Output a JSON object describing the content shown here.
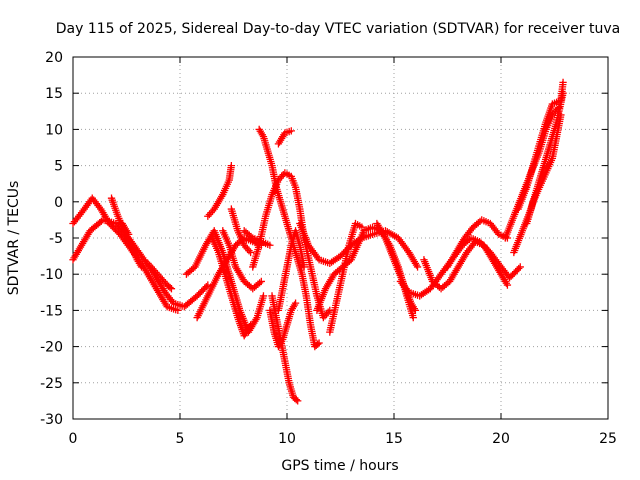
{
  "chart_data": {
    "type": "scatter",
    "title": "Day 115 of 2025, Sidereal Day-to-day VTEC variation (SDTVAR) for receiver tuva",
    "xlabel": "GPS time / hours",
    "ylabel": "SDTVAR / TECUs",
    "xlim": [
      0,
      25
    ],
    "ylim": [
      -30,
      20
    ],
    "xticks": [
      0,
      5,
      10,
      15,
      20,
      25
    ],
    "yticks": [
      -30,
      -25,
      -20,
      -15,
      -10,
      -5,
      0,
      5,
      10,
      15,
      20
    ],
    "grid": true,
    "marker": "plus",
    "color": "#ff0000",
    "series": [
      {
        "name": "arc-1",
        "points": [
          [
            0,
            -8
          ],
          [
            0.4,
            -6
          ],
          [
            0.8,
            -4
          ],
          [
            1.4,
            -2.5
          ],
          [
            2.0,
            -3
          ],
          [
            2.6,
            -5
          ],
          [
            3.2,
            -7.5
          ],
          [
            3.8,
            -10
          ],
          [
            4.3,
            -12.5
          ],
          [
            4.7,
            -14
          ],
          [
            5.2,
            -14.5
          ],
          [
            5.8,
            -13
          ],
          [
            6.3,
            -11.5
          ]
        ]
      },
      {
        "name": "arc-2",
        "points": [
          [
            0,
            -3
          ],
          [
            0.4,
            -1.5
          ],
          [
            0.9,
            0.5
          ],
          [
            1.3,
            -1
          ],
          [
            1.7,
            -3
          ],
          [
            2.2,
            -4.5
          ],
          [
            2.7,
            -6.5
          ],
          [
            3.3,
            -9
          ],
          [
            3.9,
            -12
          ],
          [
            4.4,
            -14.5
          ],
          [
            4.9,
            -15
          ]
        ]
      },
      {
        "name": "arc-3",
        "points": [
          [
            1.8,
            0.5
          ],
          [
            2.1,
            -2
          ],
          [
            2.4,
            -4
          ],
          [
            2.7,
            -6
          ],
          [
            3.0,
            -8
          ],
          [
            3.2,
            -9
          ]
        ]
      },
      {
        "name": "arc-4",
        "points": [
          [
            2.3,
            -3
          ],
          [
            2.6,
            -4.5
          ]
        ]
      },
      {
        "name": "arc-5",
        "points": [
          [
            3.5,
            -8.5
          ],
          [
            3.8,
            -9.5
          ],
          [
            4.1,
            -10.5
          ],
          [
            4.4,
            -11.5
          ],
          [
            4.6,
            -12
          ]
        ]
      },
      {
        "name": "arc-6",
        "points": [
          [
            5.3,
            -10
          ],
          [
            5.7,
            -9
          ],
          [
            6.2,
            -6
          ],
          [
            6.6,
            -4
          ],
          [
            7.0,
            -7
          ],
          [
            7.4,
            -11
          ],
          [
            7.8,
            -15
          ],
          [
            8.2,
            -18
          ],
          [
            8.6,
            -16
          ],
          [
            8.9,
            -13
          ]
        ]
      },
      {
        "name": "arc-7",
        "points": [
          [
            5.8,
            -16
          ],
          [
            6.3,
            -13
          ],
          [
            6.8,
            -10
          ],
          [
            7.2,
            -8
          ],
          [
            7.6,
            -6
          ],
          [
            8.0,
            -5
          ],
          [
            8.4,
            -5.5
          ],
          [
            8.8,
            -6
          ]
        ]
      },
      {
        "name": "arc-8",
        "points": [
          [
            6.3,
            -2
          ],
          [
            6.6,
            -1
          ],
          [
            6.8,
            0
          ],
          [
            7.0,
            1
          ],
          [
            7.3,
            3
          ],
          [
            7.4,
            5
          ]
        ]
      },
      {
        "name": "arc-9",
        "points": [
          [
            6.5,
            -5
          ],
          [
            6.8,
            -7
          ],
          [
            7.1,
            -10
          ],
          [
            7.4,
            -13
          ],
          [
            7.7,
            -16
          ],
          [
            8.0,
            -18.5
          ],
          [
            8.3,
            -17
          ]
        ]
      },
      {
        "name": "arc-10",
        "points": [
          [
            7.0,
            -4
          ],
          [
            7.3,
            -6
          ],
          [
            7.6,
            -9
          ],
          [
            8.0,
            -11
          ],
          [
            8.4,
            -12
          ],
          [
            8.8,
            -11
          ]
        ]
      },
      {
        "name": "arc-11",
        "points": [
          [
            7.4,
            -1
          ],
          [
            7.7,
            -4
          ],
          [
            8.0,
            -6
          ],
          [
            8.3,
            -7
          ]
        ]
      },
      {
        "name": "arc-12",
        "points": [
          [
            8.4,
            -9
          ],
          [
            8.7,
            -6
          ],
          [
            9.0,
            -2
          ],
          [
            9.3,
            1
          ],
          [
            9.6,
            3
          ],
          [
            9.9,
            4
          ],
          [
            10.2,
            3.5
          ],
          [
            10.4,
            2
          ],
          [
            10.6,
            -1
          ],
          [
            10.8,
            -5
          ],
          [
            11.1,
            -9
          ],
          [
            11.4,
            -13
          ],
          [
            11.7,
            -16
          ],
          [
            12.0,
            -15
          ]
        ]
      },
      {
        "name": "arc-13",
        "points": [
          [
            8.7,
            10
          ],
          [
            8.9,
            9
          ],
          [
            9.1,
            7
          ],
          [
            9.3,
            5
          ],
          [
            9.5,
            2
          ],
          [
            9.7,
            0
          ],
          [
            9.9,
            -2
          ],
          [
            10.1,
            -4
          ],
          [
            10.3,
            -6
          ],
          [
            10.5,
            -8
          ],
          [
            10.7,
            -10
          ],
          [
            10.9,
            -13
          ],
          [
            11.1,
            -17
          ],
          [
            11.3,
            -20
          ],
          [
            11.5,
            -19.5
          ]
        ]
      },
      {
        "name": "arc-14",
        "points": [
          [
            9.3,
            -13
          ],
          [
            9.5,
            -16
          ],
          [
            9.7,
            -19
          ],
          [
            9.9,
            -22
          ],
          [
            10.1,
            -25
          ],
          [
            10.3,
            -27
          ],
          [
            10.5,
            -27.5
          ]
        ]
      },
      {
        "name": "arc-15",
        "points": [
          [
            9.6,
            -15
          ],
          [
            9.8,
            -12
          ],
          [
            10.0,
            -9
          ],
          [
            10.2,
            -6
          ],
          [
            10.4,
            -4
          ],
          [
            10.6,
            -6
          ],
          [
            10.8,
            -9
          ]
        ]
      },
      {
        "name": "arc-16",
        "points": [
          [
            9.6,
            8
          ],
          [
            9.9,
            9.5
          ],
          [
            10.2,
            9.8
          ]
        ]
      },
      {
        "name": "arc-17",
        "points": [
          [
            9.2,
            -15
          ],
          [
            9.4,
            -18
          ],
          [
            9.6,
            -20
          ],
          [
            9.8,
            -19
          ],
          [
            10.0,
            -17
          ],
          [
            10.2,
            -15
          ],
          [
            10.4,
            -14
          ]
        ]
      },
      {
        "name": "arc-18",
        "points": [
          [
            8.0,
            -4
          ],
          [
            8.4,
            -5
          ],
          [
            8.8,
            -5.5
          ],
          [
            9.2,
            -6
          ]
        ]
      },
      {
        "name": "arc-19",
        "points": [
          [
            10.6,
            -3
          ],
          [
            11.0,
            -6
          ],
          [
            11.5,
            -8
          ],
          [
            12.0,
            -8.5
          ],
          [
            12.5,
            -7.5
          ],
          [
            13.0,
            -6
          ],
          [
            13.5,
            -5
          ],
          [
            14.0,
            -4.5
          ],
          [
            14.6,
            -4
          ],
          [
            15.2,
            -5
          ],
          [
            15.7,
            -7
          ],
          [
            16.1,
            -9
          ]
        ]
      },
      {
        "name": "arc-20",
        "points": [
          [
            11.4,
            -15
          ],
          [
            11.8,
            -12
          ],
          [
            12.2,
            -10
          ],
          [
            12.6,
            -9
          ],
          [
            13.0,
            -8
          ],
          [
            13.3,
            -6
          ],
          [
            13.6,
            -4
          ],
          [
            14.0,
            -3.5
          ],
          [
            14.4,
            -4
          ],
          [
            14.8,
            -6
          ],
          [
            15.2,
            -9
          ],
          [
            15.6,
            -13
          ],
          [
            15.9,
            -16
          ]
        ]
      },
      {
        "name": "arc-21",
        "points": [
          [
            12.0,
            -18
          ],
          [
            12.3,
            -14
          ],
          [
            12.6,
            -10
          ],
          [
            12.9,
            -6
          ],
          [
            13.2,
            -3
          ],
          [
            13.5,
            -3.5
          ]
        ]
      },
      {
        "name": "arc-22",
        "points": [
          [
            14.2,
            -3
          ],
          [
            14.6,
            -5
          ],
          [
            15.0,
            -8
          ],
          [
            15.4,
            -11
          ],
          [
            15.8,
            -14
          ],
          [
            16.0,
            -15
          ]
        ]
      },
      {
        "name": "arc-23",
        "points": [
          [
            15.3,
            -11
          ],
          [
            15.7,
            -12.5
          ],
          [
            16.2,
            -13
          ],
          [
            16.7,
            -12
          ],
          [
            17.2,
            -10
          ],
          [
            17.7,
            -8
          ],
          [
            18.2,
            -6
          ],
          [
            18.6,
            -5
          ],
          [
            19.0,
            -5.5
          ],
          [
            19.5,
            -7
          ],
          [
            20.0,
            -9
          ],
          [
            20.4,
            -10.5
          ],
          [
            20.9,
            -9
          ]
        ]
      },
      {
        "name": "arc-24",
        "points": [
          [
            16.4,
            -8
          ],
          [
            16.8,
            -11
          ],
          [
            17.2,
            -12
          ],
          [
            17.6,
            -11
          ],
          [
            18.0,
            -9
          ],
          [
            18.4,
            -7
          ],
          [
            18.8,
            -5.5
          ],
          [
            19.2,
            -6
          ],
          [
            19.6,
            -8
          ],
          [
            20.0,
            -10
          ],
          [
            20.3,
            -11.5
          ]
        ]
      },
      {
        "name": "arc-25",
        "points": [
          [
            17.5,
            -9
          ],
          [
            17.9,
            -7
          ],
          [
            18.3,
            -5
          ],
          [
            18.7,
            -3.5
          ],
          [
            19.1,
            -2.5
          ],
          [
            19.5,
            -3
          ],
          [
            19.9,
            -4.5
          ],
          [
            20.3,
            -5
          ]
        ]
      },
      {
        "name": "arc-26",
        "points": [
          [
            20.2,
            -5
          ],
          [
            20.6,
            -2
          ],
          [
            21.0,
            1
          ],
          [
            21.4,
            4
          ],
          [
            21.8,
            7
          ],
          [
            22.1,
            10
          ],
          [
            22.4,
            12
          ],
          [
            22.7,
            13
          ]
        ]
      },
      {
        "name": "arc-27",
        "points": [
          [
            20.6,
            -7
          ],
          [
            21.0,
            -4
          ],
          [
            21.4,
            -1
          ],
          [
            21.8,
            3
          ],
          [
            22.2,
            7
          ],
          [
            22.6,
            11
          ],
          [
            22.9,
            15
          ]
        ]
      },
      {
        "name": "arc-28",
        "points": [
          [
            21.2,
            -3
          ],
          [
            21.5,
            0
          ],
          [
            21.8,
            2
          ],
          [
            22.1,
            4
          ],
          [
            22.4,
            6
          ],
          [
            22.6,
            9
          ],
          [
            22.8,
            12
          ]
        ]
      },
      {
        "name": "arc-29",
        "points": [
          [
            20.8,
            -1
          ],
          [
            21.2,
            2
          ],
          [
            21.5,
            5
          ],
          [
            21.8,
            8
          ],
          [
            22.1,
            11
          ],
          [
            22.4,
            13.5
          ],
          [
            22.8,
            14
          ],
          [
            22.9,
            16.5
          ]
        ]
      }
    ]
  }
}
